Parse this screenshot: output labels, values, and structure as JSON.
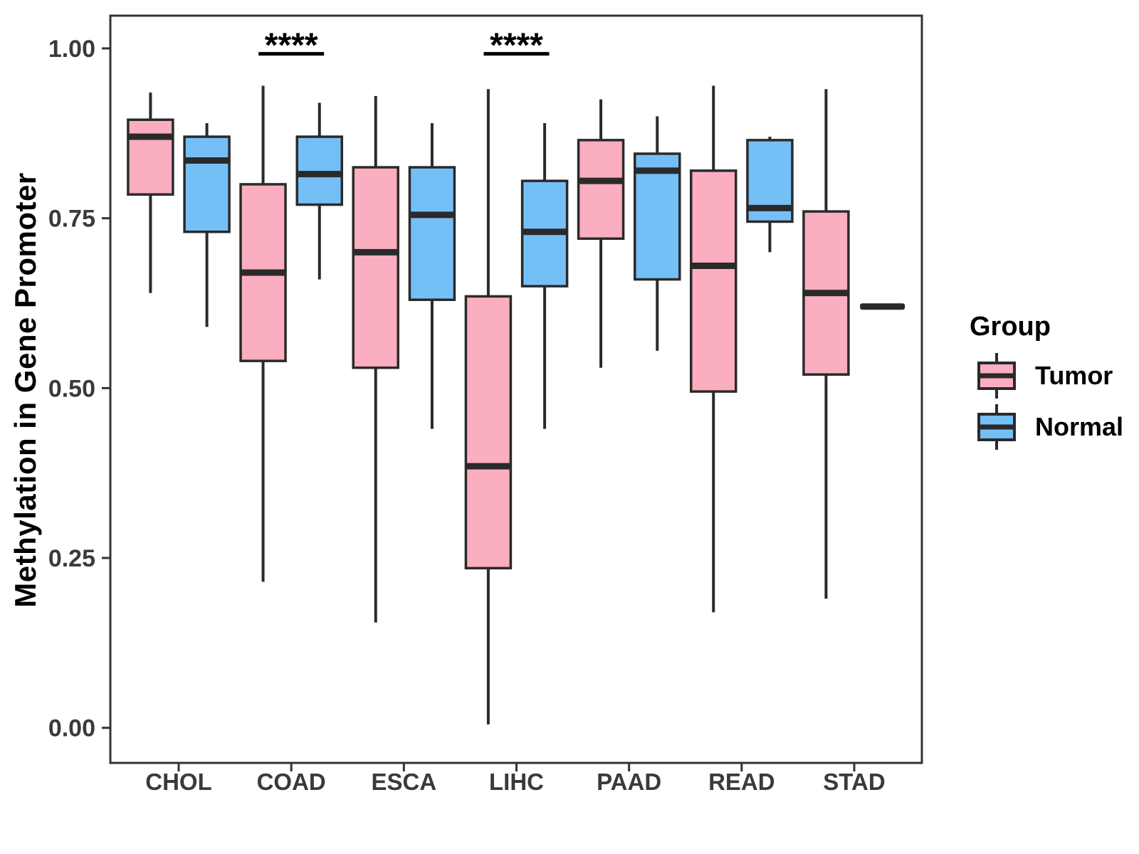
{
  "ylabel": "Methylation in Gene Promoter",
  "legend": {
    "title": "Group",
    "entries": [
      {
        "label": "Tumor",
        "color": "#FAAEC0"
      },
      {
        "label": "Normal",
        "color": "#75BFF7"
      }
    ]
  },
  "chart_data": {
    "type": "boxplot",
    "title": "",
    "xlabel": "",
    "ylabel": "Methylation in Gene Promoter",
    "categories": [
      "CHOL",
      "COAD",
      "ESCA",
      "LIHC",
      "PAAD",
      "READ",
      "STAD"
    ],
    "yticks": [
      {
        "value": 0.0,
        "label": "0.00"
      },
      {
        "value": 0.25,
        "label": "0.25"
      },
      {
        "value": 0.5,
        "label": "0.50"
      },
      {
        "value": 0.75,
        "label": "0.75"
      },
      {
        "value": 1.0,
        "label": "1.00"
      }
    ],
    "ylim": [
      -0.052,
      1.048
    ],
    "grid": false,
    "legend_position": "right",
    "stroke_color": "#2a2a2a",
    "series": [
      {
        "name": "Tumor",
        "color": "#FAAEC0",
        "boxes": [
          {
            "category": "CHOL",
            "low": 0.64,
            "q1": 0.785,
            "median": 0.87,
            "q3": 0.895,
            "high": 0.935
          },
          {
            "category": "COAD",
            "low": 0.215,
            "q1": 0.54,
            "median": 0.67,
            "q3": 0.8,
            "high": 0.945
          },
          {
            "category": "ESCA",
            "low": 0.155,
            "q1": 0.53,
            "median": 0.7,
            "q3": 0.825,
            "high": 0.93
          },
          {
            "category": "LIHC",
            "low": 0.005,
            "q1": 0.235,
            "median": 0.385,
            "q3": 0.635,
            "high": 0.94
          },
          {
            "category": "PAAD",
            "low": 0.53,
            "q1": 0.72,
            "median": 0.805,
            "q3": 0.865,
            "high": 0.925
          },
          {
            "category": "READ",
            "low": 0.17,
            "q1": 0.495,
            "median": 0.68,
            "q3": 0.82,
            "high": 0.945
          },
          {
            "category": "STAD",
            "low": 0.19,
            "q1": 0.52,
            "median": 0.64,
            "q3": 0.76,
            "high": 0.94
          }
        ]
      },
      {
        "name": "Normal",
        "color": "#75BFF7",
        "boxes": [
          {
            "category": "CHOL",
            "low": 0.59,
            "q1": 0.73,
            "median": 0.835,
            "q3": 0.87,
            "high": 0.89
          },
          {
            "category": "COAD",
            "low": 0.66,
            "q1": 0.77,
            "median": 0.815,
            "q3": 0.87,
            "high": 0.92
          },
          {
            "category": "ESCA",
            "low": 0.44,
            "q1": 0.63,
            "median": 0.755,
            "q3": 0.825,
            "high": 0.89
          },
          {
            "category": "LIHC",
            "low": 0.44,
            "q1": 0.65,
            "median": 0.73,
            "q3": 0.805,
            "high": 0.89
          },
          {
            "category": "PAAD",
            "low": 0.555,
            "q1": 0.66,
            "median": 0.82,
            "q3": 0.845,
            "high": 0.9
          },
          {
            "category": "READ",
            "low": 0.7,
            "q1": 0.745,
            "median": 0.765,
            "q3": 0.865,
            "high": 0.87
          },
          {
            "category": "STAD",
            "low": 0.62,
            "q1": 0.62,
            "median": 0.62,
            "q3": 0.62,
            "high": 0.62
          }
        ]
      }
    ],
    "annotations": [
      {
        "category": "COAD",
        "label": "****",
        "y_line": 0.992
      },
      {
        "category": "LIHC",
        "label": "****",
        "y_line": 0.992
      }
    ]
  }
}
